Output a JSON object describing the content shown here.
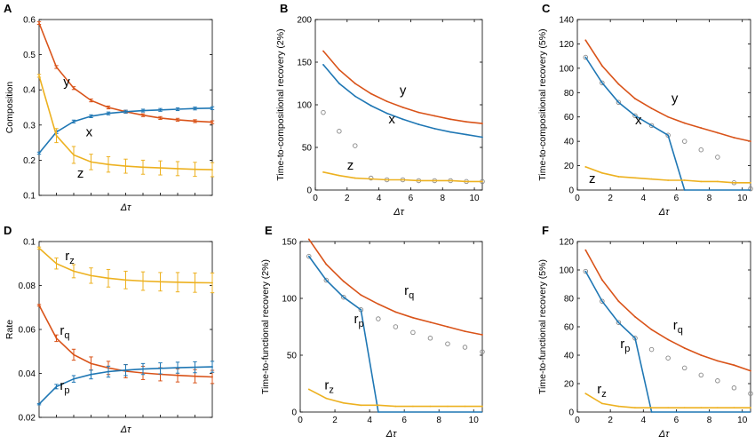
{
  "figure": {
    "colors": {
      "x": "#1f77b4",
      "y": "#d95319",
      "z": "#edb120",
      "open": "#888888",
      "axis": "#000000"
    }
  },
  "chart_data": [
    {
      "panel": "A",
      "type": "line",
      "ylabel": "Composition",
      "xlabel": "Δτ",
      "xlim": [
        0.5,
        10.5
      ],
      "ylim": [
        0.1,
        0.6
      ],
      "yticks": [
        0.1,
        0.2,
        0.3,
        0.4,
        0.5,
        0.6
      ],
      "yticklabels": [
        "0.1",
        "0.2",
        "0.3",
        "0.4",
        "0.5",
        "0.6"
      ],
      "xticks": [],
      "xticklabels": [],
      "series": [
        {
          "name": "y",
          "color": "y",
          "labelPos": [
            1.9,
            0.41
          ],
          "x": [
            0.5,
            1.5,
            2.5,
            3.5,
            4.5,
            5.5,
            6.5,
            7.5,
            8.5,
            9.5,
            10.5
          ],
          "y": [
            0.59,
            0.465,
            0.405,
            0.37,
            0.35,
            0.338,
            0.328,
            0.32,
            0.315,
            0.311,
            0.308
          ],
          "err": [
            0.004,
            0.004,
            0.004,
            0.004,
            0.004,
            0.004,
            0.004,
            0.004,
            0.004,
            0.004,
            0.004
          ]
        },
        {
          "name": "x",
          "color": "x",
          "labelPos": [
            3.2,
            0.268
          ],
          "x": [
            0.5,
            1.5,
            2.5,
            3.5,
            4.5,
            5.5,
            6.5,
            7.5,
            8.5,
            9.5,
            10.5
          ],
          "y": [
            0.22,
            0.28,
            0.31,
            0.325,
            0.333,
            0.338,
            0.341,
            0.343,
            0.345,
            0.347,
            0.348
          ],
          "err": [
            0.003,
            0.004,
            0.004,
            0.004,
            0.004,
            0.004,
            0.004,
            0.004,
            0.004,
            0.004,
            0.004
          ]
        },
        {
          "name": "z",
          "color": "z",
          "labelPos": [
            2.7,
            0.15
          ],
          "x": [
            0.5,
            1.5,
            2.5,
            3.5,
            4.5,
            5.5,
            6.5,
            7.5,
            8.5,
            9.5,
            10.5
          ],
          "y": [
            0.44,
            0.27,
            0.215,
            0.195,
            0.188,
            0.183,
            0.18,
            0.178,
            0.176,
            0.174,
            0.173
          ],
          "err": [
            0.004,
            0.02,
            0.024,
            0.022,
            0.022,
            0.02,
            0.02,
            0.02,
            0.02,
            0.02,
            0.02
          ]
        }
      ]
    },
    {
      "panel": "B",
      "type": "line",
      "ylabel": "Time-to-compositional recovery (2%)",
      "xlabel": "Δτ",
      "xlim": [
        0,
        10.5
      ],
      "ylim": [
        0,
        200
      ],
      "yticks": [
        0,
        50,
        100,
        150,
        200
      ],
      "yticklabels": [
        "0",
        "50",
        "100",
        "150",
        "200"
      ],
      "xticks": [
        0,
        2,
        4,
        6,
        8,
        10
      ],
      "xticklabels": [
        "0",
        "2",
        "4",
        "6",
        "8",
        "10"
      ],
      "series": [
        {
          "name": "y",
          "color": "y",
          "labelPos": [
            5.3,
            112
          ],
          "x": [
            0.5,
            1.5,
            2.5,
            3.5,
            4.5,
            5.5,
            6.5,
            7.5,
            8.5,
            9.5,
            10.5
          ],
          "y": [
            163,
            141,
            125,
            113,
            104,
            97,
            91,
            87,
            83,
            80,
            78
          ]
        },
        {
          "name": "x",
          "color": "x",
          "labelPos": [
            4.6,
            78
          ],
          "x": [
            0.5,
            1.5,
            2.5,
            3.5,
            4.5,
            5.5,
            6.5,
            7.5,
            8.5,
            9.5,
            10.5
          ],
          "y": [
            147,
            125,
            110,
            99,
            90,
            83,
            77,
            72,
            68,
            65,
            62
          ]
        },
        {
          "name": "z",
          "color": "z",
          "labelPos": [
            2.0,
            24
          ],
          "x": [
            0.5,
            1.5,
            2.5,
            3.5,
            4.5,
            5.5,
            6.5,
            7.5,
            8.5,
            9.5,
            10.5
          ],
          "y": [
            21,
            17,
            14,
            13,
            12,
            12,
            11,
            11,
            11,
            10,
            10
          ]
        }
      ],
      "open": {
        "x": [
          0.5,
          1.5,
          2.5,
          3.5,
          4.5,
          5.5,
          6.5,
          7.5,
          8.5,
          9.5,
          10.5
        ],
        "y": [
          91,
          69,
          52,
          14,
          12,
          12,
          11,
          11,
          11,
          10,
          10
        ]
      }
    },
    {
      "panel": "C",
      "type": "line",
      "ylabel": "Time-to-compositional recovery (5%)",
      "xlabel": "Δτ",
      "xlim": [
        0,
        10.5
      ],
      "ylim": [
        0,
        140
      ],
      "yticks": [
        0,
        20,
        40,
        60,
        80,
        100,
        120,
        140
      ],
      "yticklabels": [
        "0",
        "20",
        "40",
        "60",
        "80",
        "100",
        "120",
        "140"
      ],
      "xticks": [
        0,
        2,
        4,
        6,
        8,
        10
      ],
      "xticklabels": [
        "0",
        "2",
        "4",
        "6",
        "8",
        "10"
      ],
      "series": [
        {
          "name": "y",
          "color": "y",
          "labelPos": [
            5.7,
            72
          ],
          "x": [
            0.5,
            1.5,
            2.5,
            3.5,
            4.5,
            5.5,
            6.5,
            7.5,
            8.5,
            9.5,
            10.5
          ],
          "y": [
            123,
            102,
            87,
            75,
            67,
            60,
            55,
            51,
            47,
            43,
            40
          ]
        },
        {
          "name": "x",
          "color": "x",
          "labelPos": [
            3.5,
            54
          ],
          "x": [
            0.5,
            1.5,
            2.5,
            3.5,
            4.5,
            5.5,
            6.5
          ],
          "y": [
            109,
            88,
            72,
            61,
            53,
            45,
            0
          ]
        },
        {
          "name": "xtail",
          "color": "x",
          "noLabel": true,
          "x": [
            6.5,
            10.5
          ],
          "y": [
            0,
            0
          ]
        },
        {
          "name": "z",
          "color": "z",
          "labelPos": [
            0.7,
            6
          ],
          "x": [
            0.5,
            1.5,
            2.5,
            3.5,
            4.5,
            5.5,
            6.5,
            7.5,
            8.5,
            9.5,
            10.5
          ],
          "y": [
            19,
            14,
            11,
            10,
            9,
            8,
            8,
            7,
            7,
            6,
            6
          ]
        }
      ],
      "open": {
        "x": [
          0.5,
          1.5,
          2.5,
          3.5,
          4.5,
          5.5,
          6.5,
          7.5,
          8.5,
          9.5,
          10.5
        ],
        "y": [
          109,
          88,
          72,
          61,
          53,
          45,
          40,
          33,
          27,
          6,
          1
        ]
      }
    },
    {
      "panel": "D",
      "type": "line",
      "ylabel": "Rate",
      "xlabel": "Δτ",
      "xlim": [
        0.5,
        10.5
      ],
      "ylim": [
        0.02,
        0.1
      ],
      "yticks": [
        0.02,
        0.04,
        0.06,
        0.08,
        0.1
      ],
      "yticklabels": [
        "0.02",
        "0.04",
        "0.06",
        "0.08",
        "0.1"
      ],
      "xticks": [],
      "xticklabels": [],
      "series": [
        {
          "name": "r",
          "sub": "z",
          "color": "z",
          "labelPos": [
            2.0,
            0.0915
          ],
          "x": [
            0.5,
            1.5,
            2.5,
            3.5,
            4.5,
            5.5,
            6.5,
            7.5,
            8.5,
            9.5,
            10.5
          ],
          "y": [
            0.097,
            0.09,
            0.0865,
            0.0845,
            0.0833,
            0.0825,
            0.082,
            0.0817,
            0.0815,
            0.0813,
            0.0812
          ],
          "err": [
            0.0005,
            0.0025,
            0.003,
            0.0035,
            0.004,
            0.004,
            0.0042,
            0.0042,
            0.0044,
            0.0044,
            0.0045
          ]
        },
        {
          "name": "r",
          "sub": "q",
          "color": "y",
          "labelPos": [
            1.7,
            0.0575
          ],
          "x": [
            0.5,
            1.5,
            2.5,
            3.5,
            4.5,
            5.5,
            6.5,
            7.5,
            8.5,
            9.5,
            10.5
          ],
          "y": [
            0.071,
            0.056,
            0.0485,
            0.0445,
            0.0425,
            0.041,
            0.0402,
            0.0396,
            0.0391,
            0.0387,
            0.0384
          ],
          "err": [
            0.0004,
            0.0015,
            0.0025,
            0.003,
            0.003,
            0.003,
            0.003,
            0.003,
            0.003,
            0.003,
            0.003
          ]
        },
        {
          "name": "r",
          "sub": "p",
          "color": "x",
          "labelPos": [
            1.7,
            0.0325
          ],
          "x": [
            0.5,
            1.5,
            2.5,
            3.5,
            4.5,
            5.5,
            6.5,
            7.5,
            8.5,
            9.5,
            10.5
          ],
          "y": [
            0.026,
            0.034,
            0.0375,
            0.0395,
            0.0408,
            0.0415,
            0.042,
            0.0423,
            0.0426,
            0.0428,
            0.043
          ],
          "err": [
            0.0003,
            0.001,
            0.0015,
            0.002,
            0.0025,
            0.0025,
            0.0025,
            0.0025,
            0.0025,
            0.0025,
            0.0025
          ]
        }
      ]
    },
    {
      "panel": "E",
      "type": "line",
      "ylabel": "Time-to-functional recovery (2%)",
      "xlabel": "Δτ",
      "xlim": [
        0,
        10.5
      ],
      "ylim": [
        0,
        150
      ],
      "yticks": [
        0,
        50,
        100,
        150
      ],
      "yticklabels": [
        "0",
        "50",
        "100",
        "150"
      ],
      "xticks": [
        0,
        2,
        4,
        6,
        8,
        10
      ],
      "xticklabels": [
        "0",
        "2",
        "4",
        "6",
        "8",
        "10"
      ],
      "series": [
        {
          "name": "r",
          "sub": "q",
          "color": "y",
          "labelPos": [
            6.0,
            103
          ],
          "x": [
            0.5,
            1.5,
            2.5,
            3.5,
            4.5,
            5.5,
            6.5,
            7.5,
            8.5,
            9.5,
            10.5
          ],
          "y": [
            152,
            130,
            115,
            103,
            95,
            88,
            83,
            79,
            75,
            71,
            68
          ]
        },
        {
          "name": "r",
          "sub": "p",
          "color": "x",
          "labelPos": [
            3.1,
            78
          ],
          "x": [
            0.5,
            1.5,
            2.5,
            3.5,
            4.5
          ],
          "y": [
            137,
            116,
            101,
            90,
            0
          ]
        },
        {
          "name": "ptail",
          "color": "x",
          "noLabel": true,
          "x": [
            4.5,
            10.5
          ],
          "y": [
            0,
            0
          ]
        },
        {
          "name": "r",
          "sub": "z",
          "color": "z",
          "labelPos": [
            1.4,
            20
          ],
          "x": [
            0.5,
            1.5,
            2.5,
            3.5,
            4.5,
            5.5,
            6.5,
            7.5,
            8.5,
            9.5,
            10.5
          ],
          "y": [
            20,
            12,
            8,
            6,
            6,
            5,
            5,
            5,
            5,
            5,
            5
          ]
        }
      ],
      "open": {
        "x": [
          0.5,
          1.5,
          2.5,
          3.5,
          4.5,
          5.5,
          6.5,
          7.5,
          8.5,
          9.5,
          10.5
        ],
        "y": [
          137,
          116,
          101,
          90,
          82,
          75,
          70,
          65,
          60,
          57,
          53
        ]
      }
    },
    {
      "panel": "F",
      "type": "line",
      "ylabel": "Time-to-functional recovery (5%)",
      "xlabel": "Δτ",
      "xlim": [
        0,
        10.5
      ],
      "ylim": [
        0,
        120
      ],
      "yticks": [
        0,
        20,
        40,
        60,
        80,
        100,
        120
      ],
      "yticklabels": [
        "0",
        "20",
        "40",
        "60",
        "80",
        "100",
        "120"
      ],
      "xticks": [
        0,
        2,
        4,
        6,
        8,
        10
      ],
      "xticklabels": [
        "0",
        "2",
        "4",
        "6",
        "8",
        "10"
      ],
      "series": [
        {
          "name": "r",
          "sub": "q",
          "color": "y",
          "labelPos": [
            5.8,
            58
          ],
          "x": [
            0.5,
            1.5,
            2.5,
            3.5,
            4.5,
            5.5,
            6.5,
            7.5,
            8.5,
            9.5,
            10.5
          ],
          "y": [
            114,
            93,
            78,
            67,
            58,
            51,
            45,
            40,
            36,
            33,
            29
          ]
        },
        {
          "name": "r",
          "sub": "p",
          "color": "x",
          "labelPos": [
            2.6,
            45
          ],
          "x": [
            0.5,
            1.5,
            2.5,
            3.5,
            4.5
          ],
          "y": [
            99,
            78,
            63,
            52,
            0
          ]
        },
        {
          "name": "ptail",
          "color": "x",
          "noLabel": true,
          "x": [
            4.5,
            10.5
          ],
          "y": [
            0,
            0
          ]
        },
        {
          "name": "r",
          "sub": "z",
          "color": "z",
          "labelPos": [
            1.2,
            13
          ],
          "x": [
            0.5,
            1.5,
            2.5,
            3.5,
            4.5,
            5.5,
            6.5,
            7.5,
            8.5,
            9.5,
            10.5
          ],
          "y": [
            13,
            6,
            4,
            3,
            3,
            3,
            3,
            3,
            3,
            3,
            3
          ]
        }
      ],
      "open": {
        "x": [
          0.5,
          1.5,
          2.5,
          3.5,
          4.5,
          5.5,
          6.5,
          7.5,
          8.5,
          9.5,
          10.5
        ],
        "y": [
          99,
          78,
          63,
          52,
          44,
          38,
          31,
          26,
          22,
          17,
          13
        ]
      }
    }
  ]
}
